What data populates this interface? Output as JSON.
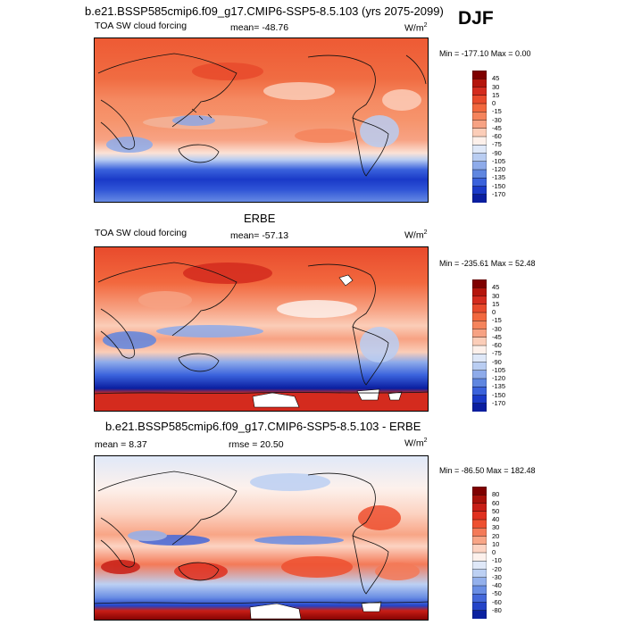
{
  "season": "DJF",
  "panels": [
    {
      "title": "b.e21.BSSP585cmip6.f09_g17.CMIP6-SSP5-8.5.103 (yrs 2075-2099)",
      "variable": "TOA SW cloud forcing",
      "stat": "mean= -48.76",
      "units": "W/m",
      "units_sup": "2",
      "minmax": "Min = -177.10 Max =   0.00",
      "levels": [
        "45",
        "30",
        "15",
        "0",
        "-15",
        "-30",
        "-45",
        "-60",
        "-75",
        "-90",
        "-105",
        "-120",
        "-135",
        "-150",
        "-170"
      ],
      "colors": [
        "#7f0000",
        "#b5150c",
        "#d42b1e",
        "#e84a2c",
        "#f2683e",
        "#f5845c",
        "#f7a283",
        "#fbcdb8",
        "#fdf0ea",
        "#dfe8f8",
        "#b9cdf2",
        "#8eabea",
        "#5f86e0",
        "#3a62dc",
        "#1a3ac8",
        "#0a1ea0"
      ]
    },
    {
      "title": "ERBE",
      "variable": "TOA SW cloud forcing",
      "stat": "mean= -57.13",
      "units": "W/m",
      "units_sup": "2",
      "minmax": "Min = -235.61 Max =  52.48",
      "levels": [
        "45",
        "30",
        "15",
        "0",
        "-15",
        "-30",
        "-45",
        "-60",
        "-75",
        "-90",
        "-105",
        "-120",
        "-135",
        "-150",
        "-170"
      ],
      "colors": [
        "#7f0000",
        "#b5150c",
        "#d42b1e",
        "#e84a2c",
        "#f2683e",
        "#f5845c",
        "#f7a283",
        "#fbcdb8",
        "#fdf0ea",
        "#dfe8f8",
        "#b9cdf2",
        "#8eabea",
        "#5f86e0",
        "#3a62dc",
        "#1a3ac8",
        "#0a1ea0"
      ]
    },
    {
      "title": "b.e21.BSSP585cmip6.f09_g17.CMIP6-SSP5-8.5.103 - ERBE",
      "stat_left": "mean =   8.37",
      "stat_mid": "rmse =  20.50",
      "units": "W/m",
      "units_sup": "2",
      "minmax": "Min = -86.50 Max = 182.48",
      "levels": [
        "80",
        "60",
        "50",
        "40",
        "30",
        "20",
        "10",
        "0",
        "-10",
        "-20",
        "-30",
        "-40",
        "-50",
        "-60",
        "-80"
      ],
      "colors": [
        "#7f0000",
        "#a8110a",
        "#c81e16",
        "#e0301f",
        "#ee5030",
        "#f47a58",
        "#f8a586",
        "#fcd3c2",
        "#fdf1ec",
        "#dfe8f8",
        "#bcd0f3",
        "#93b0ec",
        "#6a8ee4",
        "#4468da",
        "#2444c8",
        "#0c22a0"
      ]
    }
  ]
}
